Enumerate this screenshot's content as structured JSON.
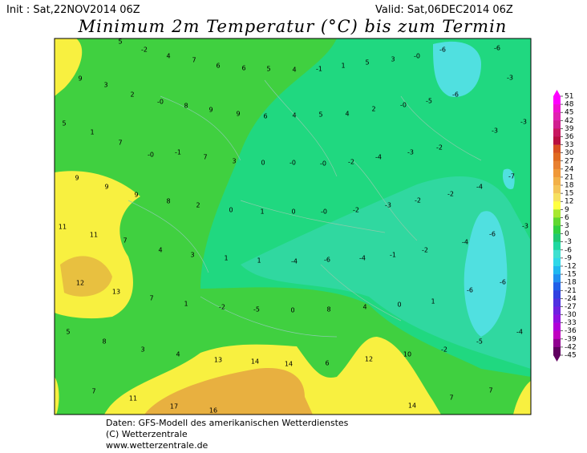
{
  "header": {
    "init": "Init : Sat,22NOV2014 06Z",
    "valid": "Valid: Sat,06DEC2014 06Z",
    "title": "Minimum 2m Temperatur (°C) bis zum Termin"
  },
  "map_labels": [
    "5",
    "-2",
    "4",
    "7",
    "6",
    "6",
    "5",
    "4",
    "-1",
    "1",
    "5",
    "3",
    "-0",
    "-6",
    "-6",
    "9",
    "3",
    "2",
    "-0",
    "8",
    "9",
    "9",
    "6",
    "4",
    "5",
    "4",
    "2",
    "-0",
    "-5",
    "-6",
    "-3",
    "5",
    "1",
    "7",
    "-0",
    "-1",
    "7",
    "3",
    "0",
    "-0",
    "-0",
    "-2",
    "-4",
    "-3",
    "-2",
    "-3",
    "-3",
    "9",
    "9",
    "9",
    "8",
    "2",
    "0",
    "1",
    "0",
    "-0",
    "-2",
    "-3",
    "-2",
    "-2",
    "-4",
    "-7",
    "11",
    "11",
    "7",
    "4",
    "3",
    "1",
    "1",
    "-4",
    "-6",
    "-4",
    "-1",
    "-2",
    "-4",
    "-6",
    "-3",
    "12",
    "13",
    "7",
    "1",
    "-2",
    "-5",
    "0",
    "8",
    "4",
    "0",
    "1",
    "-6",
    "-6",
    "5",
    "8",
    "3",
    "4",
    "13",
    "14",
    "14",
    "6",
    "12",
    "10",
    "-2",
    "-5",
    "-4",
    "7",
    "11",
    "17",
    "16",
    "14",
    "7",
    "7"
  ],
  "colorbar": {
    "labels": [
      "51",
      "48",
      "45",
      "42",
      "39",
      "36",
      "33",
      "30",
      "27",
      "24",
      "21",
      "18",
      "15",
      "12",
      "9",
      "6",
      "3",
      "0",
      "-3",
      "-6",
      "-9",
      "-12",
      "-15",
      "-18",
      "-21",
      "-24",
      "-27",
      "-30",
      "-33",
      "-36",
      "-39",
      "-42",
      "-45"
    ],
    "colors": [
      "#ff00ff",
      "#f010d0",
      "#e020b0",
      "#d02090",
      "#c81860",
      "#b81040",
      "#d85020",
      "#e06a20",
      "#e88030",
      "#f09838",
      "#f2b048",
      "#f4c458",
      "#f6e060",
      "#ffff40",
      "#a8e830",
      "#60d830",
      "#30d040",
      "#20c870",
      "#20d8a0",
      "#40e0d0",
      "#30d8e8",
      "#20b8f0",
      "#2090f0",
      "#2060e8",
      "#3040e0",
      "#5030e0",
      "#7020e0",
      "#9010e0",
      "#b000d8",
      "#c000c0",
      "#900090",
      "#600060"
    ]
  },
  "footer": {
    "line1": "Daten: GFS-Modell des amerikanischen Wetterdienstes",
    "line2": "(C) Wetterzentrale",
    "line3": "www.wetterzentrale.de"
  }
}
